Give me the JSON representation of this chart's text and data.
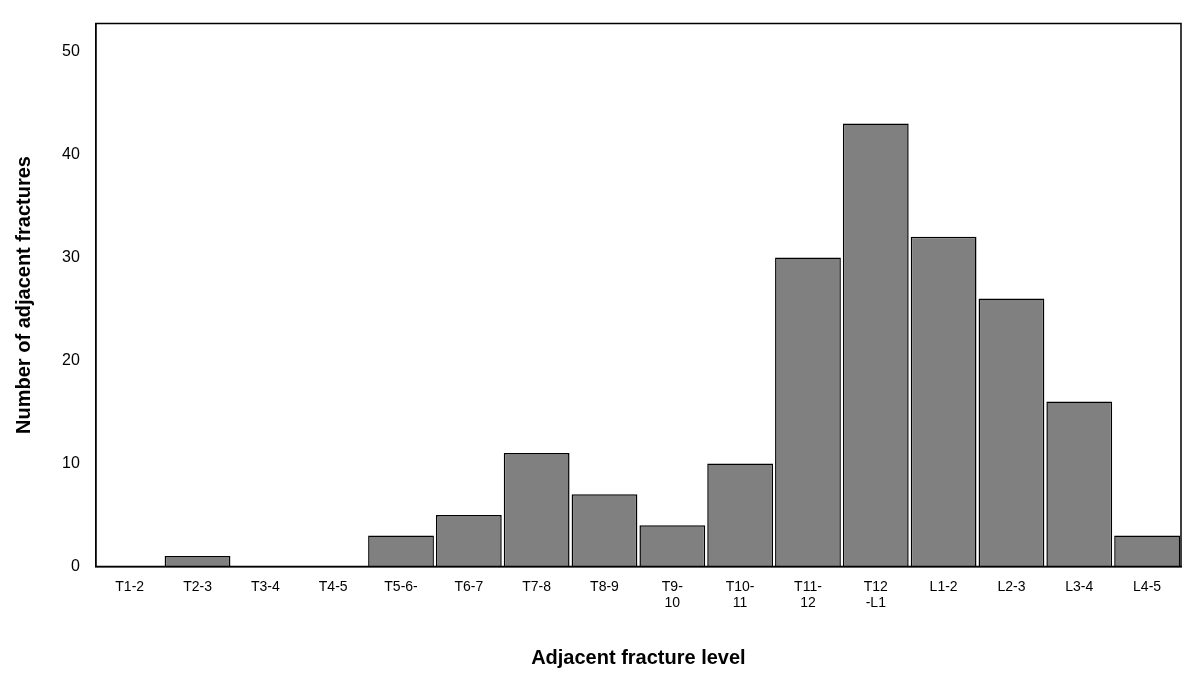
{
  "chart_data": {
    "type": "bar",
    "xlabel": "Adjacent fracture level",
    "ylabel": "Number of adjacent fractures",
    "categories": [
      "T1-2",
      "T2-3",
      "T3-4",
      "T4-5",
      "T5-6-",
      "T6-7",
      "T7-8",
      "T8-9",
      "T9-\n10",
      "T10-\n11",
      "T11-\n12",
      "T12\n-L1",
      "L1-2",
      "L2-3",
      "L3-4",
      "L4-5"
    ],
    "values": [
      0,
      1,
      0,
      0,
      3,
      5,
      11,
      7,
      4,
      10,
      30,
      43,
      32,
      26,
      16,
      3
    ],
    "color": "#808080",
    "ylim": [
      0,
      52.7
    ],
    "yticks": [
      0,
      10,
      20,
      30,
      40,
      50
    ],
    "grid": false,
    "legend": false
  }
}
